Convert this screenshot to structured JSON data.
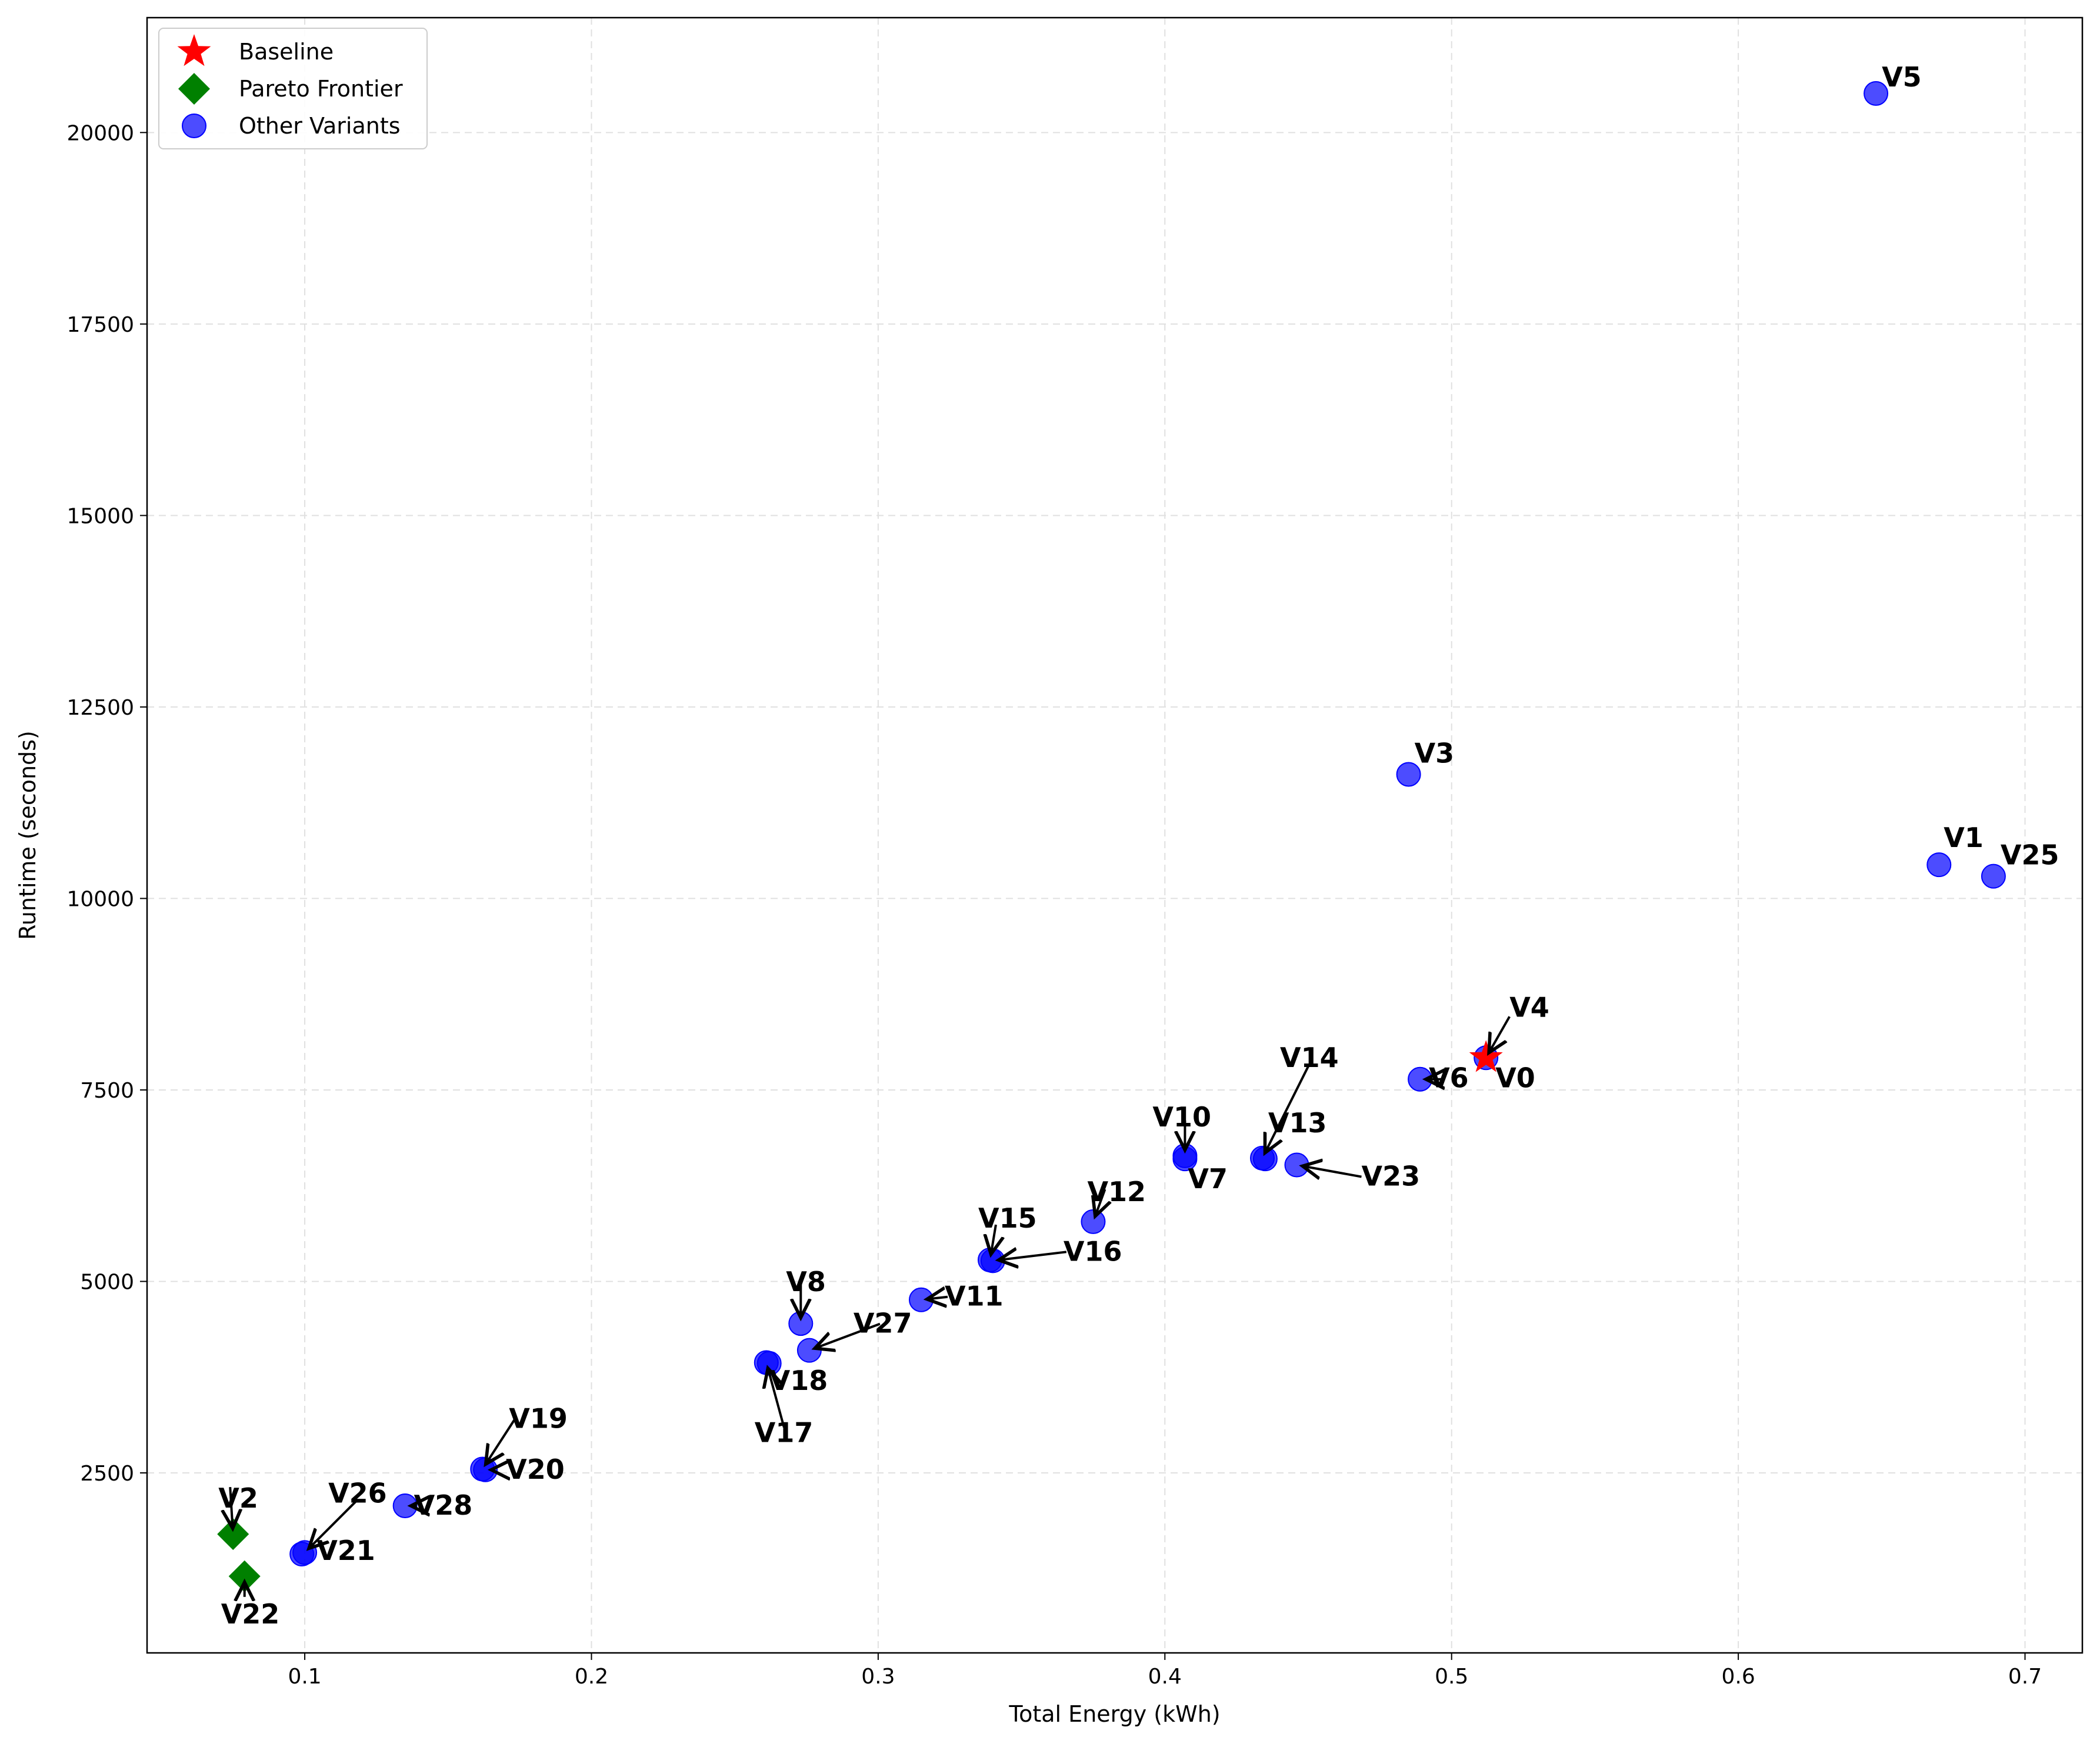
{
  "chart_data": {
    "type": "scatter",
    "xlabel": "Total Energy (kWh)",
    "ylabel": "Runtime (seconds)",
    "xlim": [
      0.045,
      0.72
    ],
    "ylim": [
      150,
      21500
    ],
    "xticks": [
      0.1,
      0.2,
      0.3,
      0.4,
      0.5,
      0.6,
      0.7
    ],
    "yticks": [
      2500,
      5000,
      7500,
      10000,
      12500,
      15000,
      17500,
      20000
    ],
    "grid": true,
    "legend_position": "top-left",
    "legend": [
      {
        "name": "Baseline",
        "marker": "star",
        "color": "#ff0000"
      },
      {
        "name": "Pareto Frontier",
        "marker": "diamond",
        "color": "#008000"
      },
      {
        "name": "Other Variants",
        "marker": "circle",
        "color": "#0000ff"
      }
    ],
    "series": [
      {
        "name": "Baseline",
        "points": [
          {
            "label": "V0",
            "x": 0.512,
            "y": 7920
          }
        ]
      },
      {
        "name": "Pareto Frontier",
        "points": [
          {
            "label": "V2",
            "x": 0.075,
            "y": 1700
          },
          {
            "label": "V22",
            "x": 0.079,
            "y": 1150
          }
        ]
      },
      {
        "name": "Other Variants",
        "points": [
          {
            "label": "V1",
            "x": 0.67,
            "y": 10440
          },
          {
            "label": "V3",
            "x": 0.485,
            "y": 11620
          },
          {
            "label": "V4",
            "x": 0.512,
            "y": 7920
          },
          {
            "label": "V5",
            "x": 0.648,
            "y": 20510
          },
          {
            "label": "V6",
            "x": 0.489,
            "y": 7640
          },
          {
            "label": "V7",
            "x": 0.407,
            "y": 6600
          },
          {
            "label": "V8",
            "x": 0.273,
            "y": 4450
          },
          {
            "label": "V10",
            "x": 0.407,
            "y": 6640
          },
          {
            "label": "V11",
            "x": 0.315,
            "y": 4760
          },
          {
            "label": "V12",
            "x": 0.375,
            "y": 5780
          },
          {
            "label": "V13",
            "x": 0.435,
            "y": 6600
          },
          {
            "label": "V14",
            "x": 0.434,
            "y": 6610
          },
          {
            "label": "V15",
            "x": 0.339,
            "y": 5280
          },
          {
            "label": "V16",
            "x": 0.34,
            "y": 5270
          },
          {
            "label": "V17",
            "x": 0.261,
            "y": 3940
          },
          {
            "label": "V18",
            "x": 0.262,
            "y": 3930
          },
          {
            "label": "V19",
            "x": 0.162,
            "y": 2550
          },
          {
            "label": "V20",
            "x": 0.163,
            "y": 2540
          },
          {
            "label": "V21",
            "x": 0.099,
            "y": 1440
          },
          {
            "label": "V23",
            "x": 0.446,
            "y": 6520
          },
          {
            "label": "V25",
            "x": 0.689,
            "y": 10290
          },
          {
            "label": "V26",
            "x": 0.1,
            "y": 1460
          },
          {
            "label": "V27",
            "x": 0.276,
            "y": 4100
          },
          {
            "label": "V28",
            "x": 0.135,
            "y": 2070
          }
        ]
      }
    ]
  },
  "colors": {
    "baseline": "#ff0000",
    "pareto": "#008000",
    "other": "#0000ff",
    "grid": "#e0e0e0"
  }
}
